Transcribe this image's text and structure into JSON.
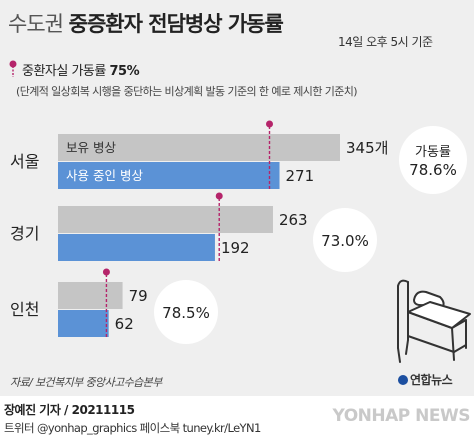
{
  "header": {
    "title_prefix": "수도권",
    "title_main": "중증환자 전담병상 가동률",
    "timestamp": "14일 오후 5시 기준"
  },
  "note": {
    "label": "중환자실 가동률",
    "value": "75%",
    "sub": "(단계적 일상회복 시행을 중단하는 비상계획 발동 기준의 한 예로 제시한 기준치)"
  },
  "footer": {
    "source": "자료/ 보건복지부 중앙사고수습본부",
    "logo": "연합뉴스",
    "credit": "장예진 기자 / 20211115",
    "social": "트위터 @yonhap_graphics  페이스북 tuney.kr/LeYN1",
    "watermark": "YONHAP NEWS"
  },
  "chart_data": {
    "type": "bar",
    "orientation": "horizontal",
    "categories": [
      "서울",
      "경기",
      "인천"
    ],
    "series": [
      {
        "name": "보유 병상",
        "values": [
          345,
          263,
          79
        ],
        "value_labels": [
          "345개",
          "263",
          "79"
        ],
        "color": "#c5c5c5"
      },
      {
        "name": "사용 중인 병상",
        "values": [
          271,
          192,
          62
        ],
        "value_labels": [
          "271",
          "192",
          "62"
        ],
        "color": "#5b92d6"
      }
    ],
    "utilization_title": "가동률",
    "utilization_labels": [
      "78.6%",
      "73.0%",
      "78.5%"
    ],
    "threshold": 0.75,
    "threshold_color": "#b5246a",
    "xlim": [
      0,
      345
    ]
  }
}
